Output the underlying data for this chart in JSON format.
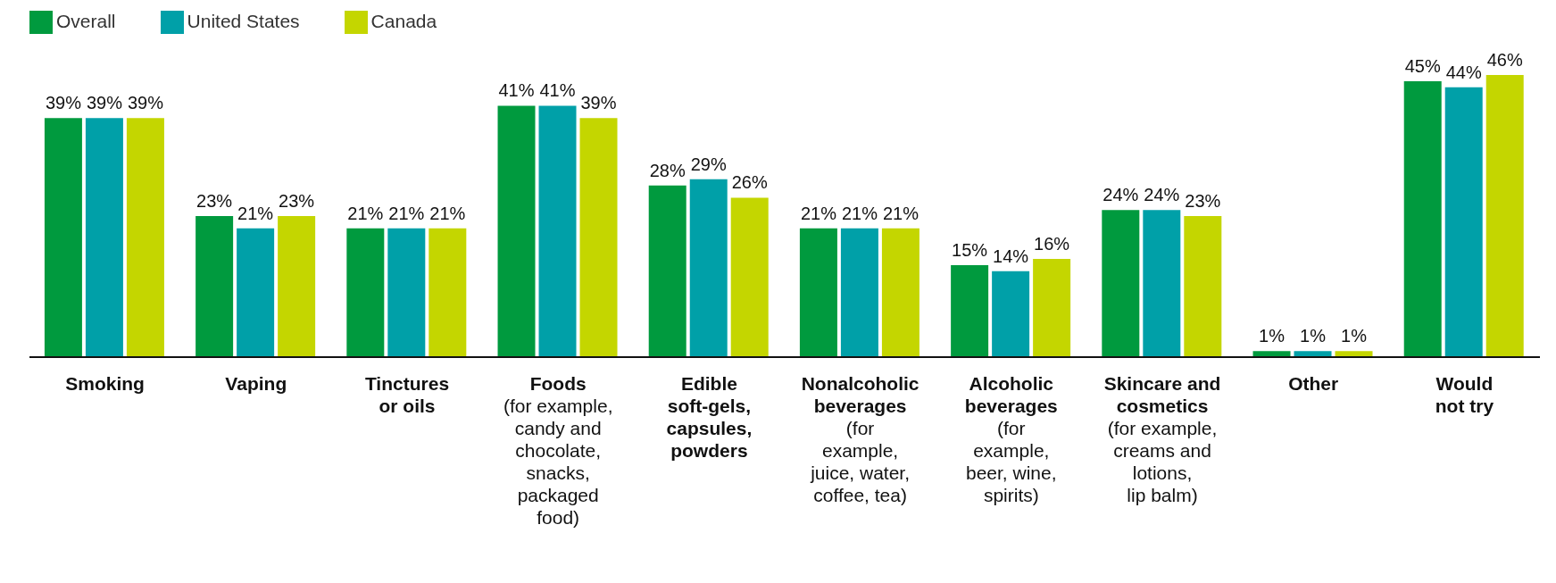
{
  "chart_data": {
    "type": "bar",
    "categories": [
      "Smoking",
      "Vaping",
      "Tinctures\nor oils",
      "Foods\n(for example,\ncandy and\nchocolate,\nsnacks,\npackaged\nfood)",
      "Edible\nsoft-gels,\ncapsules,\npowders",
      "Nonalcoholic\nbeverages\n(for\nexample,\njuice, water,\ncoffee, tea)",
      "Alcoholic\nbeverages\n(for\nexample,\nbeer, wine,\nspirits)",
      "Skincare and\ncosmetics\n(for example,\ncreams and\nlotions,\nlip balm)",
      "Other",
      "Would\nnot try"
    ],
    "series": [
      {
        "name": "Overall",
        "color": "#009a3e",
        "values": [
          39,
          23,
          21,
          41,
          28,
          21,
          15,
          24,
          1,
          45
        ],
        "value_labels": [
          "39%",
          "23%",
          "21%",
          "41%",
          "28%",
          "21%",
          "15%",
          "24%",
          "1%",
          "45%"
        ]
      },
      {
        "name": "United States",
        "color": "#00a0a8",
        "values": [
          39,
          21,
          21,
          41,
          29,
          21,
          14,
          24,
          1,
          44
        ],
        "value_labels": [
          "39%",
          "21%",
          "21%",
          "41%",
          "29%",
          "21%",
          "14%",
          "24%",
          "1%",
          "44%"
        ]
      },
      {
        "name": "Canada",
        "color": "#c4d600",
        "values": [
          39,
          23,
          21,
          39,
          26,
          21,
          16,
          23,
          1,
          46
        ],
        "value_labels": [
          "39%",
          "23%",
          "21%",
          "39%",
          "26%",
          "21%",
          "16%",
          "23%",
          "1%",
          "46%"
        ]
      }
    ],
    "legend": "top left",
    "tick_labels": "x"
  }
}
